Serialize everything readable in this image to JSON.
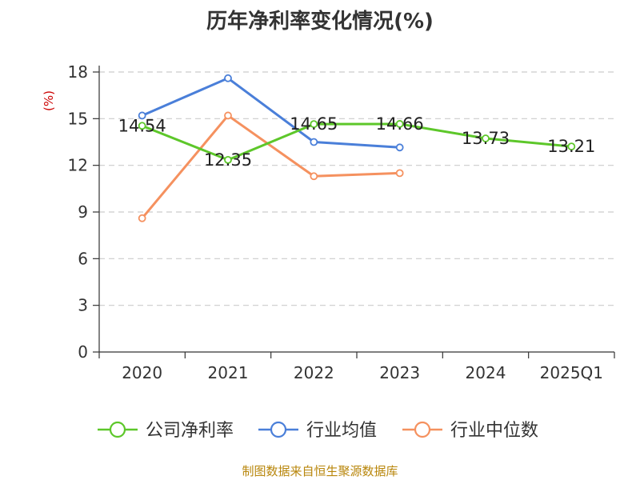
{
  "chart_data": {
    "type": "line",
    "title": "历年净利率变化情况(%)",
    "ylabel": "(%)",
    "xlabel": "",
    "categories": [
      "2020",
      "2021",
      "2022",
      "2023",
      "2024",
      "2025Q1"
    ],
    "ylim": [
      0,
      18
    ],
    "yticks": [
      0,
      3,
      6,
      9,
      12,
      15,
      18
    ],
    "grid": "horizontal dashed",
    "legend_position": "bottom",
    "series": [
      {
        "name": "公司净利率",
        "color": "#5dc72a",
        "values": [
          14.54,
          12.35,
          14.65,
          14.66,
          13.73,
          13.21
        ],
        "labels": [
          "14.54",
          "12.35",
          "14.65",
          "14.66",
          "13.73",
          "13.21"
        ]
      },
      {
        "name": "行业均值",
        "color": "#4a7fd9",
        "values": [
          15.2,
          17.6,
          13.5,
          13.15,
          null,
          null
        ]
      },
      {
        "name": "行业中位数",
        "color": "#f5915f",
        "values": [
          8.6,
          15.2,
          11.3,
          11.5,
          null,
          null
        ]
      }
    ]
  },
  "colors": {
    "unit_label": "#cc0000",
    "source_note": "#b8860b",
    "axis": "#333333",
    "grid": "#cccccc"
  },
  "source_note": "制图数据来自恒生聚源数据库"
}
